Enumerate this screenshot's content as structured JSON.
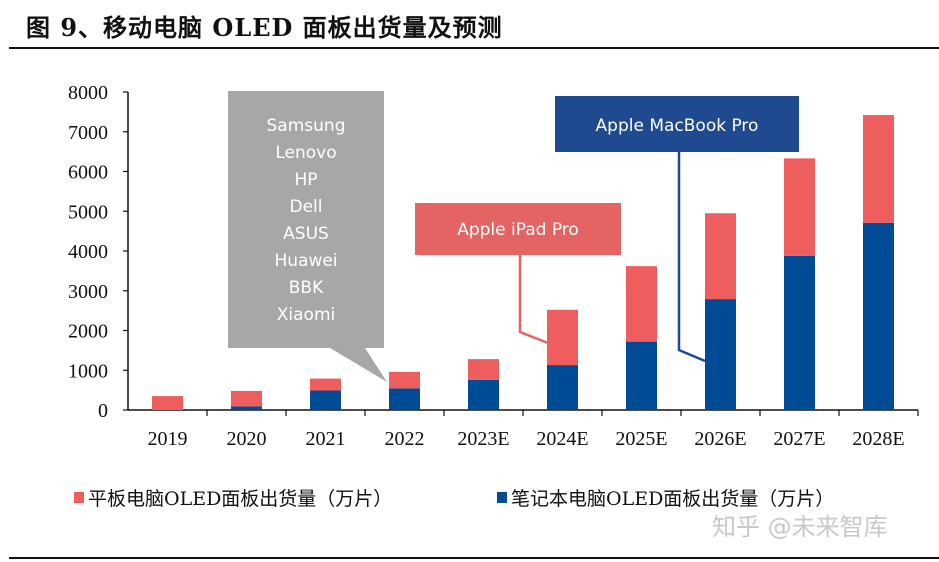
{
  "title": "图 9、移动电脑 OLED 面板出货量及预测",
  "watermark": "知乎 @未来智库",
  "colors": {
    "tablet": "#EE5E5E",
    "notebook": "#004B96",
    "gray_callout": "#A9A6A6",
    "pink_callout": "#E46464",
    "blue_callout": "#1F4A8F"
  },
  "callouts": {
    "gray": [
      "Samsung",
      "Lenovo",
      "HP",
      "Dell",
      "ASUS",
      "Huawei",
      "BBK",
      "Xiaomi"
    ],
    "pink": "Apple iPad Pro",
    "blue": "Apple MacBook Pro"
  },
  "chart_data": {
    "type": "bar",
    "stacked": true,
    "categories": [
      "2019",
      "2020",
      "2021",
      "2022",
      "2023E",
      "2024E",
      "2025E",
      "2026E",
      "2027E",
      "2028E"
    ],
    "series": [
      {
        "name": "笔记本电脑OLED面板出货量（万片）",
        "color": "#004B96",
        "values": [
          0,
          90,
          490,
          545,
          760,
          1130,
          1720,
          2790,
          3880,
          4710
        ]
      },
      {
        "name": "平板电脑OLED面板出货量（万片）",
        "color": "#EE5E5E",
        "values": [
          350,
          390,
          300,
          415,
          520,
          1390,
          1900,
          2160,
          2450,
          2710
        ]
      }
    ],
    "yticks": [
      "0",
      "1000",
      "2000",
      "3000",
      "4000",
      "5000",
      "6000",
      "7000",
      "8000"
    ],
    "ylim": [
      0,
      8000
    ],
    "grid": false,
    "legend": "bottom"
  }
}
